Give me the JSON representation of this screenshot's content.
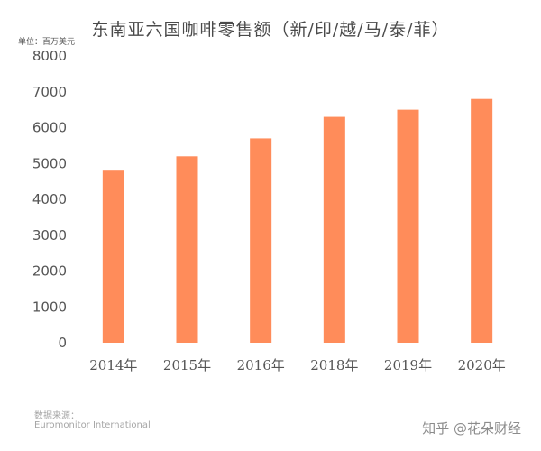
{
  "chart_data": {
    "type": "bar",
    "title": "东南亚六国咖啡零售额（新/印/越/马/泰/菲）",
    "unit": "单位：百万美元",
    "categories": [
      "2014年",
      "2015年",
      "2016年",
      "2018年",
      "2019年",
      "2020年"
    ],
    "values": [
      4800,
      5200,
      5700,
      6300,
      6500,
      6800
    ],
    "ylim": [
      0,
      8000
    ],
    "yticks": [
      0,
      1000,
      2000,
      3000,
      4000,
      5000,
      6000,
      7000,
      8000
    ],
    "bar_color": "#ff8c5a",
    "grid": false,
    "legend": "none"
  },
  "footer": {
    "source_label": "数据来源：",
    "source_name": "Euromonitor International",
    "watermark": "知乎 @花朵财经"
  }
}
